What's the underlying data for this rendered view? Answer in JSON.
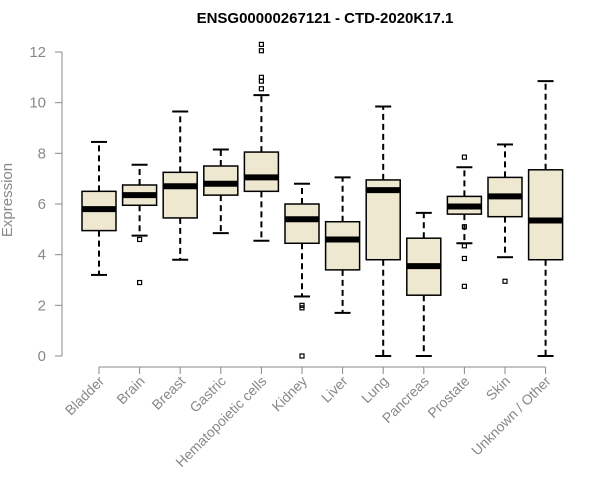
{
  "chart_data": {
    "type": "boxplot",
    "title": "ENSG00000267121 - CTD-2020K17.1",
    "xlabel": "",
    "ylabel": "Expression",
    "ylim": [
      0,
      12
    ],
    "yticks": [
      0,
      2,
      4,
      6,
      8,
      10,
      12
    ],
    "box_fill": "#efe8d0",
    "categories": [
      "Bladder",
      "Brain",
      "Breast",
      "Gastric",
      "Hematopoietic cells",
      "Kidney",
      "Liver",
      "Lung",
      "Pancreas",
      "Prostate",
      "Skin",
      "Unknown / Other"
    ],
    "boxes": [
      {
        "min": 3.2,
        "q1": 4.95,
        "median": 5.8,
        "q3": 6.5,
        "max": 8.45,
        "outliers": []
      },
      {
        "min": 4.75,
        "q1": 5.95,
        "median": 6.35,
        "q3": 6.75,
        "max": 7.55,
        "outliers": [
          2.9,
          4.6
        ]
      },
      {
        "min": 3.8,
        "q1": 5.45,
        "median": 6.7,
        "q3": 7.25,
        "max": 9.65,
        "outliers": []
      },
      {
        "min": 4.85,
        "q1": 6.35,
        "median": 6.8,
        "q3": 7.5,
        "max": 8.15,
        "outliers": []
      },
      {
        "min": 4.55,
        "q1": 6.5,
        "median": 7.05,
        "q3": 8.05,
        "max": 10.3,
        "outliers": [
          10.55,
          10.85,
          11.0,
          12.05,
          12.3
        ]
      },
      {
        "min": 2.35,
        "q1": 4.45,
        "median": 5.4,
        "q3": 6.0,
        "max": 6.8,
        "outliers": [
          0.0,
          1.9,
          2.0
        ]
      },
      {
        "min": 1.7,
        "q1": 3.4,
        "median": 4.6,
        "q3": 5.3,
        "max": 7.05,
        "outliers": []
      },
      {
        "min": 0.0,
        "q1": 3.8,
        "median": 6.55,
        "q3": 6.95,
        "max": 9.85,
        "outliers": []
      },
      {
        "min": 0.0,
        "q1": 2.4,
        "median": 3.55,
        "q3": 4.65,
        "max": 5.65,
        "outliers": []
      },
      {
        "min": 4.45,
        "q1": 5.6,
        "median": 5.9,
        "q3": 6.3,
        "max": 7.45,
        "outliers": [
          2.75,
          3.85,
          4.35,
          5.1,
          7.85
        ]
      },
      {
        "min": 3.9,
        "q1": 5.5,
        "median": 6.3,
        "q3": 7.05,
        "max": 8.35,
        "outliers": [
          2.95
        ]
      },
      {
        "min": 0.0,
        "q1": 3.8,
        "median": 5.35,
        "q3": 7.35,
        "max": 10.85,
        "outliers": []
      }
    ]
  }
}
